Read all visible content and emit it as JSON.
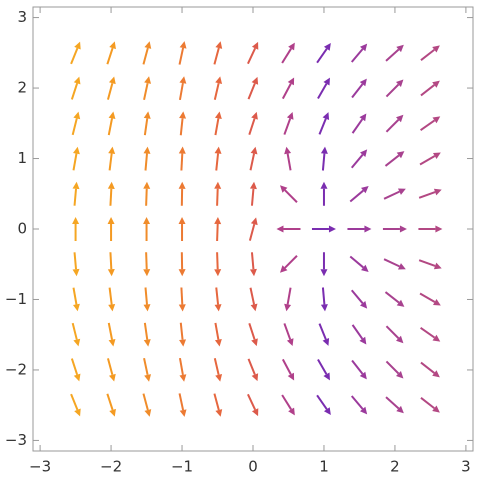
{
  "chart_data": {
    "type": "vector",
    "x": [
      -2.5,
      -2,
      -1.5,
      -1,
      -0.5,
      0,
      0.5,
      1,
      1.5,
      2,
      2.5
    ],
    "y": [
      2.5,
      2,
      1.5,
      1,
      0.5,
      0,
      -0.5,
      -1,
      -1.5,
      -2,
      -2.5
    ],
    "angles": [
      [
        68,
        72,
        75,
        78,
        75,
        65,
        58,
        55,
        50,
        42,
        38
      ],
      [
        72,
        75,
        78,
        80,
        77,
        68,
        62,
        60,
        52,
        45,
        38
      ],
      [
        76,
        79,
        82,
        84,
        80,
        72,
        70,
        68,
        55,
        45,
        35
      ],
      [
        80,
        83,
        85,
        87,
        84,
        78,
        100,
        85,
        50,
        38,
        30
      ],
      [
        85,
        87,
        88,
        89,
        88,
        85,
        135,
        90,
        40,
        25,
        20
      ],
      [
        90,
        90,
        90,
        90,
        88,
        75,
        180,
        0,
        0,
        0,
        0
      ],
      [
        -85,
        -87,
        -88,
        -89,
        -88,
        -85,
        -135,
        -90,
        -40,
        -25,
        -20
      ],
      [
        -80,
        -83,
        -85,
        -87,
        -84,
        -78,
        -100,
        -85,
        -50,
        -38,
        -30
      ],
      [
        -76,
        -79,
        -82,
        -84,
        -80,
        -72,
        -70,
        -68,
        -55,
        -45,
        -35
      ],
      [
        -72,
        -75,
        -78,
        -80,
        -77,
        -68,
        -62,
        -60,
        -52,
        -45,
        -38
      ],
      [
        -68,
        -72,
        -75,
        -78,
        -75,
        -65,
        -58,
        -55,
        -50,
        -42,
        -38
      ]
    ],
    "column_colors": [
      "#f5a623",
      "#f49a22",
      "#f08c2a",
      "#ec7a33",
      "#e6673e",
      "#dc5a4b",
      "#b0408a",
      "#7a2db0",
      "#9b3a9c",
      "#a8428f",
      "#b34883"
    ],
    "xlim": [
      -3.1,
      3.1
    ],
    "ylim": [
      -3.15,
      3.15
    ],
    "xticks": [
      {
        "value": -3,
        "label": "−3"
      },
      {
        "value": -2,
        "label": "−2"
      },
      {
        "value": -1,
        "label": "−1"
      },
      0,
      1,
      2,
      3
    ],
    "yticks": [
      {
        "value": -3,
        "label": "−3"
      },
      {
        "value": -2,
        "label": "−2"
      },
      {
        "value": -1,
        "label": "−1"
      },
      0,
      1,
      2,
      3
    ]
  }
}
